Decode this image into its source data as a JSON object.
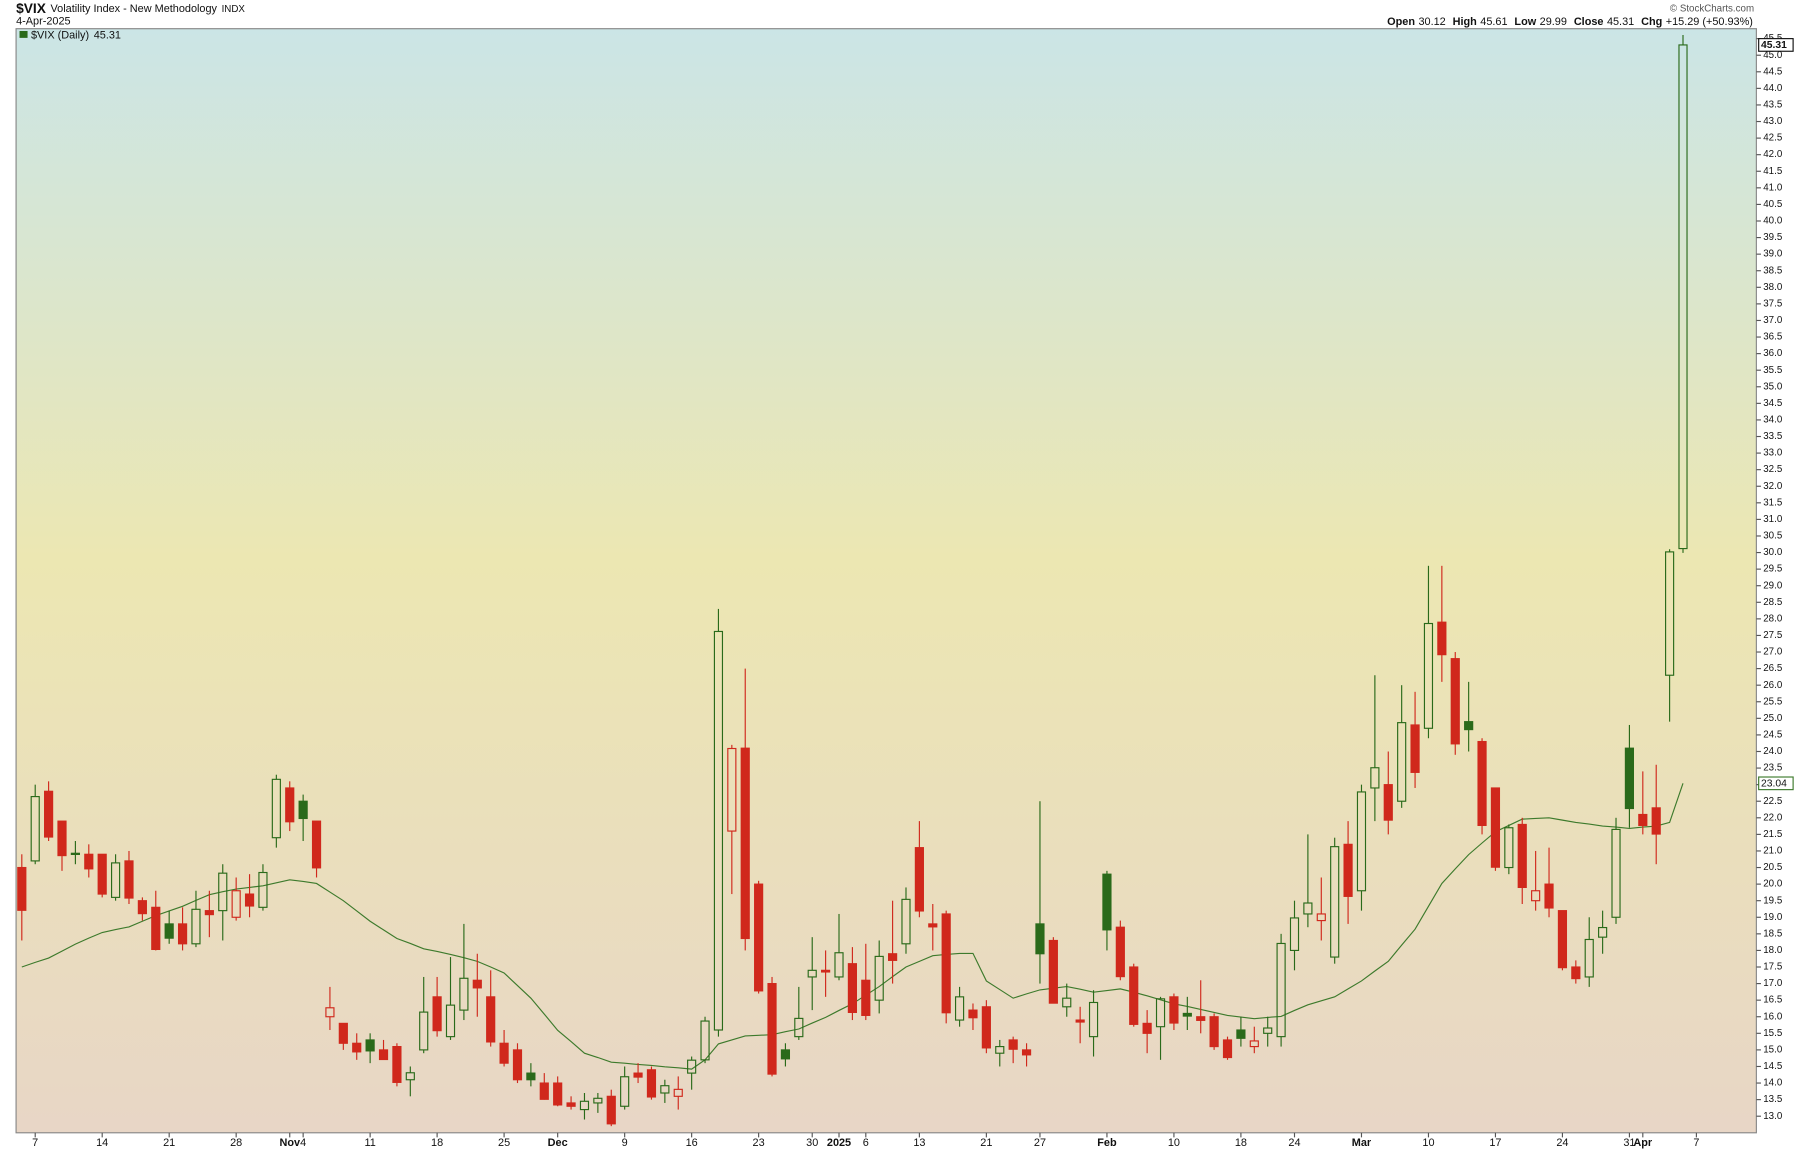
{
  "chart_data": {
    "type": "candlestick",
    "title": "$VIX",
    "subtitle": "Volatility Index - New Methodology",
    "exchange": "INDX",
    "date": "4-Apr-2025",
    "source": "© StockCharts.com",
    "stats_labels": [
      "Open",
      "High",
      "Low",
      "Close",
      "Chg"
    ],
    "change": "+15.29 (+50.93%)",
    "categories": [
      null,
      "7",
      null,
      null,
      null,
      null,
      "14",
      null,
      null,
      null,
      null,
      "21",
      null,
      null,
      null,
      null,
      "28",
      null,
      null,
      null,
      "Nov",
      "4",
      null,
      null,
      null,
      null,
      "11",
      null,
      null,
      null,
      null,
      "18",
      null,
      null,
      null,
      null,
      "25",
      null,
      null,
      null,
      "Dec",
      null,
      null,
      null,
      null,
      "9",
      null,
      null,
      null,
      null,
      "16",
      null,
      null,
      null,
      null,
      "23",
      null,
      null,
      null,
      "30",
      null,
      "2025",
      null,
      "6",
      null,
      null,
      null,
      "13",
      null,
      null,
      null,
      null,
      "21",
      null,
      null,
      null,
      "27",
      null,
      null,
      null,
      null,
      "Feb",
      null,
      null,
      null,
      null,
      "10",
      null,
      null,
      null,
      null,
      "18",
      null,
      null,
      null,
      "24",
      null,
      null,
      null,
      null,
      "Mar",
      null,
      null,
      null,
      null,
      "10",
      null,
      null,
      null,
      null,
      "17",
      null,
      null,
      null,
      null,
      "24",
      null,
      null,
      null,
      null,
      "31",
      "Apr",
      null,
      null,
      null,
      "7"
    ],
    "ylim": [
      12.5,
      45.8
    ],
    "yticks": [
      {
        "value": 13,
        "label": "13.0"
      },
      {
        "value": 13.5,
        "label": "13.5"
      },
      {
        "value": 14,
        "label": "14.0"
      },
      {
        "value": 14.5,
        "label": "14.5"
      },
      {
        "value": 15,
        "label": "15.0"
      },
      {
        "value": 15.5,
        "label": "15.5"
      },
      {
        "value": 16,
        "label": "16.0"
      },
      {
        "value": 16.5,
        "label": "16.5"
      },
      {
        "value": 17,
        "label": "17.0"
      },
      {
        "value": 17.5,
        "label": "17.5"
      },
      {
        "value": 18,
        "label": "18.0"
      },
      {
        "value": 18.5,
        "label": "18.5"
      },
      {
        "value": 19,
        "label": "19.0"
      },
      {
        "value": 19.5,
        "label": "19.5"
      },
      {
        "value": 20,
        "label": "20.0"
      },
      {
        "value": 20.5,
        "label": "20.5"
      },
      {
        "value": 21,
        "label": "21.0"
      },
      {
        "value": 21.5,
        "label": "21.5"
      },
      {
        "value": 22,
        "label": "22.0"
      },
      {
        "value": 22.5,
        "label": "22.5"
      },
      {
        "value": 23,
        "label": "23.0"
      },
      {
        "value": 23.5,
        "label": "23.5"
      },
      {
        "value": 24,
        "label": "24.0"
      },
      {
        "value": 24.5,
        "label": "24.5"
      },
      {
        "value": 25,
        "label": "25.0"
      },
      {
        "value": 25.5,
        "label": "25.5"
      },
      {
        "value": 26,
        "label": "26.0"
      },
      {
        "value": 26.5,
        "label": "26.5"
      },
      {
        "value": 27,
        "label": "27.0"
      },
      {
        "value": 27.5,
        "label": "27.5"
      },
      {
        "value": 28,
        "label": "28.0"
      },
      {
        "value": 28.5,
        "label": "28.5"
      },
      {
        "value": 29,
        "label": "29.0"
      },
      {
        "value": 29.5,
        "label": "29.5"
      },
      {
        "value": 30,
        "label": "30.0"
      },
      {
        "value": 30.5,
        "label": "30.5"
      },
      {
        "value": 31,
        "label": "31.0"
      },
      {
        "value": 31.5,
        "label": "31.5"
      },
      {
        "value": 32,
        "label": "32.0"
      },
      {
        "value": 32.5,
        "label": "32.5"
      },
      {
        "value": 33,
        "label": "33.0"
      },
      {
        "value": 33.5,
        "label": "33.5"
      },
      {
        "value": 34,
        "label": "34.0"
      },
      {
        "value": 34.5,
        "label": "34.5"
      },
      {
        "value": 35,
        "label": "35.0"
      },
      {
        "value": 35.5,
        "label": "35.5"
      },
      {
        "value": 36,
        "label": "36.0"
      },
      {
        "value": 36.5,
        "label": "36.5"
      },
      {
        "value": 37,
        "label": "37.0"
      },
      {
        "value": 37.5,
        "label": "37.5"
      },
      {
        "value": 38,
        "label": "38.0"
      },
      {
        "value": 38.5,
        "label": "38.5"
      },
      {
        "value": 39,
        "label": "39.0"
      },
      {
        "value": 39.5,
        "label": "39.5"
      },
      {
        "value": 40,
        "label": "40.0"
      },
      {
        "value": 40.5,
        "label": "40.5"
      },
      {
        "value": 41,
        "label": "41.0"
      },
      {
        "value": 41.5,
        "label": "41.5"
      },
      {
        "value": 42,
        "label": "42.0"
      },
      {
        "value": 42.5,
        "label": "42.5"
      },
      {
        "value": 43,
        "label": "43.0"
      },
      {
        "value": 43.5,
        "label": "43.5"
      },
      {
        "value": 44,
        "label": "44.0"
      },
      {
        "value": 44.5,
        "label": "44.5"
      },
      {
        "value": 45,
        "label": "45.0"
      },
      {
        "value": 45.5,
        "label": "45.5"
      }
    ],
    "series": [
      {
        "type": "candlestick",
        "name": "$VIX (Daily)",
        "up_color": "#2a6a1a",
        "down_color": "#d0281c",
        "open": [
          20.5,
          20.7,
          22.8,
          21.9,
          20.9,
          20.9,
          20.9,
          19.6,
          20.7,
          19.5,
          19.3,
          18.8,
          18.8,
          18.2,
          19.2,
          19.2,
          19.0,
          19.7,
          19.3,
          21.4,
          22.9,
          22.5,
          21.9,
          16.0,
          15.8,
          15.2,
          15.3,
          15.0,
          15.1,
          14.1,
          15.0,
          16.6,
          15.4,
          16.2,
          17.1,
          16.6,
          15.2,
          15.0,
          14.3,
          14.0,
          14.0,
          13.4,
          13.2,
          13.4,
          13.6,
          13.3,
          14.3,
          14.4,
          13.7,
          13.6,
          14.3,
          14.7,
          15.6,
          21.6,
          24.1,
          20.0,
          17.0,
          15.0,
          15.4,
          17.2,
          17.4,
          17.2,
          17.6,
          17.1,
          16.5,
          17.9,
          18.2,
          21.1,
          18.8,
          19.1,
          15.9,
          16.2,
          16.3,
          14.9,
          15.3,
          15.0,
          18.8,
          18.3,
          16.3,
          15.9,
          15.4,
          20.3,
          18.7,
          17.5,
          15.8,
          15.7,
          16.6,
          16.1,
          16.0,
          16.0,
          15.3,
          15.6,
          15.1,
          15.5,
          15.4,
          18.0,
          19.1,
          18.9,
          17.8,
          21.2,
          19.8,
          22.9,
          23.0,
          22.5,
          24.8,
          24.7,
          27.9,
          26.8,
          24.9,
          24.3,
          22.9,
          20.5,
          21.8,
          19.5,
          20.0,
          19.2,
          17.5,
          17.2,
          18.4,
          19.0,
          24.1,
          22.1,
          22.3,
          26.3,
          30.12,
          null
        ],
        "high": [
          20.9,
          23.0,
          23.1,
          21.9,
          21.3,
          21.2,
          20.9,
          20.9,
          21.0,
          19.6,
          19.8,
          19.2,
          19.3,
          19.8,
          19.8,
          20.6,
          20.2,
          20.3,
          20.6,
          23.3,
          23.1,
          22.7,
          21.9,
          16.9,
          15.8,
          15.5,
          15.5,
          15.3,
          15.2,
          14.5,
          17.2,
          17.2,
          17.8,
          18.8,
          17.9,
          17.4,
          15.6,
          15.2,
          14.6,
          14.3,
          14.2,
          13.6,
          13.7,
          13.7,
          13.8,
          14.5,
          14.6,
          14.5,
          14.1,
          14.2,
          14.8,
          16.0,
          28.3,
          24.2,
          26.5,
          20.1,
          17.2,
          15.2,
          16.9,
          18.4,
          18.0,
          19.1,
          18.1,
          18.2,
          18.3,
          19.5,
          19.9,
          21.9,
          19.4,
          19.2,
          16.9,
          16.4,
          16.5,
          15.3,
          15.4,
          15.2,
          22.5,
          18.4,
          17.0,
          16.3,
          16.8,
          20.4,
          18.9,
          17.6,
          16.2,
          16.6,
          16.7,
          16.6,
          17.1,
          16.1,
          15.4,
          16.0,
          15.7,
          16.0,
          18.5,
          19.5,
          21.5,
          20.2,
          21.4,
          21.9,
          23.0,
          26.3,
          24.0,
          26.0,
          25.8,
          29.6,
          29.6,
          27.0,
          26.1,
          24.4,
          22.9,
          21.8,
          22.0,
          21.0,
          21.1,
          19.2,
          17.7,
          19.0,
          19.2,
          22.0,
          24.8,
          23.4,
          23.6,
          30.1,
          45.61,
          null
        ],
        "low": [
          18.3,
          20.6,
          21.3,
          20.4,
          20.6,
          20.2,
          19.6,
          19.5,
          19.4,
          18.9,
          18.0,
          18.2,
          18.0,
          18.1,
          18.4,
          18.3,
          18.9,
          19.0,
          19.2,
          21.1,
          21.6,
          21.3,
          20.2,
          15.6,
          15.0,
          14.7,
          14.6,
          14.7,
          13.9,
          13.6,
          14.9,
          15.4,
          15.3,
          15.9,
          16.0,
          15.1,
          14.5,
          14.0,
          13.9,
          13.5,
          13.3,
          13.2,
          12.9,
          13.1,
          12.7,
          13.2,
          14.0,
          13.5,
          13.4,
          13.2,
          13.8,
          14.6,
          15.4,
          19.7,
          18.0,
          16.7,
          14.2,
          14.5,
          15.3,
          16.2,
          16.6,
          17.1,
          15.9,
          15.9,
          16.1,
          17.0,
          17.9,
          19.0,
          18.0,
          15.8,
          15.7,
          15.6,
          14.9,
          14.5,
          14.6,
          14.5,
          17.0,
          16.4,
          16.0,
          15.2,
          14.8,
          18.0,
          17.1,
          15.7,
          14.9,
          14.7,
          15.6,
          15.6,
          15.5,
          15.0,
          14.7,
          15.1,
          14.9,
          15.1,
          15.1,
          17.4,
          18.7,
          18.3,
          17.6,
          18.8,
          19.2,
          21.9,
          21.5,
          22.3,
          22.9,
          24.4,
          26.1,
          23.9,
          24.0,
          21.5,
          20.4,
          20.3,
          19.4,
          19.2,
          19.0,
          17.4,
          17.0,
          16.9,
          17.9,
          18.8,
          21.7,
          21.5,
          20.6,
          24.9,
          29.99,
          null
        ],
        "close": [
          19.21,
          22.64,
          21.42,
          20.86,
          20.93,
          20.46,
          19.7,
          20.64,
          19.58,
          19.11,
          18.03,
          18.37,
          18.2,
          19.24,
          19.08,
          20.33,
          19.8,
          19.34,
          20.35,
          23.16,
          21.88,
          21.98,
          20.49,
          16.27,
          15.2,
          14.94,
          14.97,
          14.71,
          14.02,
          14.31,
          16.14,
          15.58,
          16.35,
          17.16,
          16.87,
          15.24,
          14.6,
          14.1,
          14.1,
          13.51,
          13.34,
          13.3,
          13.45,
          13.54,
          12.77,
          14.19,
          14.18,
          13.58,
          13.92,
          13.81,
          14.69,
          15.87,
          27.62,
          24.09,
          18.36,
          16.78,
          14.27,
          14.73,
          15.95,
          17.4,
          17.35,
          17.93,
          16.13,
          16.04,
          17.82,
          17.7,
          19.54,
          19.19,
          18.71,
          16.12,
          16.6,
          15.97,
          15.06,
          15.1,
          15.02,
          14.85,
          17.9,
          16.41,
          16.56,
          15.84,
          16.43,
          18.62,
          17.21,
          15.77,
          15.5,
          16.54,
          15.81,
          16.02,
          15.89,
          15.1,
          14.77,
          15.35,
          15.27,
          15.66,
          18.21,
          18.98,
          19.43,
          19.1,
          21.13,
          19.63,
          22.78,
          23.51,
          21.93,
          24.87,
          23.37,
          27.86,
          26.92,
          24.23,
          24.66,
          21.77,
          20.51,
          21.7,
          19.9,
          19.8,
          19.28,
          17.48,
          17.15,
          18.33,
          18.69,
          21.65,
          22.28,
          21.77,
          21.51,
          30.02,
          45.31,
          null
        ]
      },
      {
        "type": "line",
        "color": "#3d7a2c",
        "values": [
          17.5,
          17.64,
          17.77,
          17.98,
          18.19,
          18.37,
          18.54,
          18.63,
          18.71,
          18.88,
          19.05,
          19.19,
          19.33,
          19.51,
          19.68,
          19.77,
          19.85,
          19.9,
          19.95,
          20.04,
          20.13,
          20.08,
          20.02,
          19.76,
          19.5,
          19.19,
          18.88,
          18.62,
          18.36,
          18.21,
          18.05,
          17.97,
          17.88,
          17.78,
          17.67,
          17.5,
          17.32,
          16.94,
          16.56,
          16.08,
          15.59,
          15.25,
          14.9,
          14.77,
          14.63,
          14.6,
          14.56,
          14.53,
          14.49,
          14.46,
          14.42,
          14.7,
          15.18,
          15.3,
          15.42,
          15.44,
          15.46,
          15.55,
          15.63,
          15.81,
          15.98,
          16.19,
          16.39,
          16.65,
          16.91,
          17.21,
          17.5,
          17.67,
          17.84,
          17.88,
          17.91,
          17.91,
          17.08,
          16.82,
          16.56,
          16.69,
          16.81,
          16.86,
          16.91,
          16.83,
          16.74,
          16.79,
          16.84,
          16.74,
          16.63,
          16.51,
          16.39,
          16.31,
          16.22,
          16.13,
          16.04,
          15.99,
          15.94,
          15.98,
          16.01,
          16.19,
          16.36,
          16.48,
          16.6,
          16.84,
          17.08,
          17.38,
          17.67,
          18.16,
          18.64,
          19.33,
          20.02,
          20.46,
          20.89,
          21.24,
          21.58,
          21.77,
          21.96,
          21.98,
          22.0,
          21.93,
          21.86,
          21.81,
          21.75,
          21.72,
          21.68,
          21.72,
          21.75,
          21.86,
          23.04,
          null
        ]
      }
    ]
  }
}
